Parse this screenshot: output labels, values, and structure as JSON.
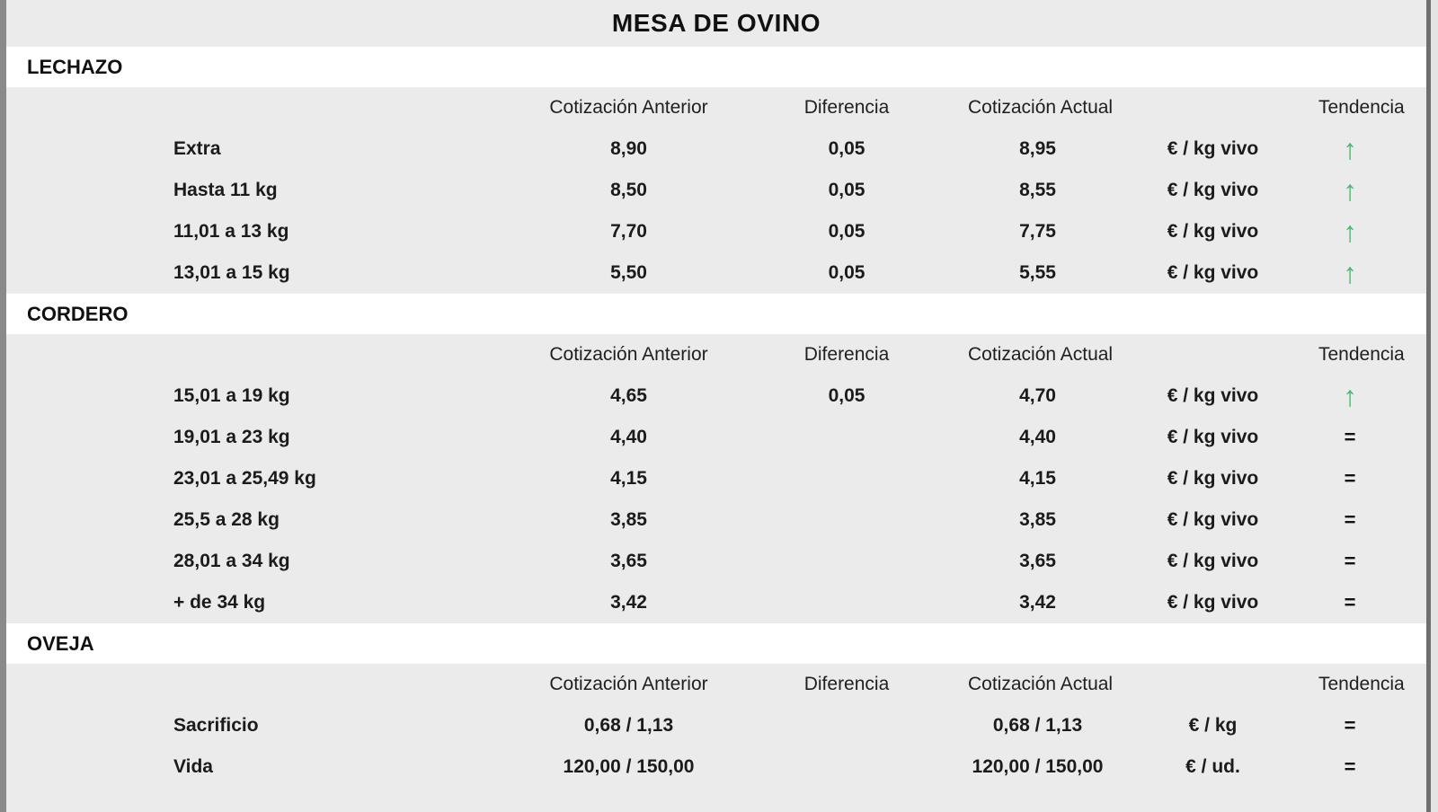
{
  "title": "MESA DE OVINO",
  "column_headers": {
    "anterior": "Cotización Anterior",
    "diferencia": "Diferencia",
    "actual": "Cotización Actual",
    "tendencia": "Tendencia"
  },
  "colors": {
    "background": "#ebebeb",
    "section_row_background": "#ffffff",
    "text": "#1b1b1b",
    "trend_up_green": "#4db56f",
    "left_border_gray": "#8a8a8a",
    "right_border_gray": "#6f6f6f"
  },
  "sections": [
    {
      "name": "LECHAZO",
      "rows": [
        {
          "label": "Extra",
          "anterior": "8,90",
          "diferencia": "0,05",
          "actual": "8,95",
          "unit": "€ / kg vivo",
          "trend": "up",
          "trend_glyph": "↑"
        },
        {
          "label": "Hasta 11 kg",
          "anterior": "8,50",
          "diferencia": "0,05",
          "actual": "8,55",
          "unit": "€ / kg vivo",
          "trend": "up",
          "trend_glyph": "↑"
        },
        {
          "label": "11,01 a 13 kg",
          "anterior": "7,70",
          "diferencia": "0,05",
          "actual": "7,75",
          "unit": "€ / kg vivo",
          "trend": "up",
          "trend_glyph": "↑"
        },
        {
          "label": "13,01 a 15 kg",
          "anterior": "5,50",
          "diferencia": "0,05",
          "actual": "5,55",
          "unit": "€ / kg vivo",
          "trend": "up",
          "trend_glyph": "↑"
        }
      ]
    },
    {
      "name": "CORDERO",
      "rows": [
        {
          "label": "15,01 a 19 kg",
          "anterior": "4,65",
          "diferencia": "0,05",
          "actual": "4,70",
          "unit": "€ / kg vivo",
          "trend": "up",
          "trend_glyph": "↑"
        },
        {
          "label": "19,01 a 23 kg",
          "anterior": "4,40",
          "diferencia": "",
          "actual": "4,40",
          "unit": "€ / kg vivo",
          "trend": "equal",
          "trend_glyph": "="
        },
        {
          "label": "23,01 a 25,49 kg",
          "anterior": "4,15",
          "diferencia": "",
          "actual": "4,15",
          "unit": "€ / kg vivo",
          "trend": "equal",
          "trend_glyph": "="
        },
        {
          "label": "25,5 a 28 kg",
          "anterior": "3,85",
          "diferencia": "",
          "actual": "3,85",
          "unit": "€ / kg vivo",
          "trend": "equal",
          "trend_glyph": "="
        },
        {
          "label": "28,01 a 34 kg",
          "anterior": "3,65",
          "diferencia": "",
          "actual": "3,65",
          "unit": "€ / kg vivo",
          "trend": "equal",
          "trend_glyph": "="
        },
        {
          "label": "+ de 34 kg",
          "anterior": "3,42",
          "diferencia": "",
          "actual": "3,42",
          "unit": "€ / kg vivo",
          "trend": "equal",
          "trend_glyph": "="
        }
      ]
    },
    {
      "name": "OVEJA",
      "rows": [
        {
          "label": "Sacrificio",
          "anterior": "0,68 / 1,13",
          "diferencia": "",
          "actual": "0,68 / 1,13",
          "unit": "€ / kg",
          "trend": "equal",
          "trend_glyph": "="
        },
        {
          "label": "Vida",
          "anterior": "120,00 / 150,00",
          "diferencia": "",
          "actual": "120,00 / 150,00",
          "unit": "€ / ud.",
          "trend": "equal",
          "trend_glyph": "="
        }
      ]
    }
  ]
}
